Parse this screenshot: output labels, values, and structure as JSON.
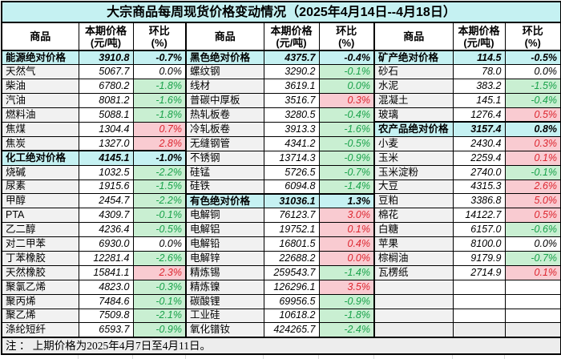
{
  "title": "大宗商品每周现货价格变动情况（2025年4月14日--4月18日）",
  "note": "注 ： 上期价格为2025年4月7日至4月11日。",
  "header": {
    "commodity": "商品",
    "price1": "本期价格",
    "price2": "(元/吨)",
    "pct1": "环比",
    "pct2": "(%)"
  },
  "colors": {
    "category_row_bg": "#c5f1f2",
    "title_bg": "#c5f1f2",
    "commodity_col_bg": "#f1f1f1",
    "increase_bg": "#f9cbd1",
    "increase_text": "#dd2630",
    "decrease_bg": "#c9efd2",
    "decrease_text": "#19a24a",
    "footer_bg": "#ededed"
  },
  "groups": [
    {
      "rows": [
        {
          "kind": "category",
          "name": "能源绝对价格",
          "price": "3910.8",
          "pct": "-0.7%"
        },
        {
          "kind": "item",
          "name": "天然气",
          "price": "5067.7",
          "pct": "0.0%",
          "trend": "flat"
        },
        {
          "kind": "item",
          "name": "柴油",
          "price": "6780.2",
          "pct": "-1.8%",
          "trend": "down"
        },
        {
          "kind": "item",
          "name": "汽油",
          "price": "8081.2",
          "pct": "-1.6%",
          "trend": "down"
        },
        {
          "kind": "item",
          "name": "燃料油",
          "price": "5088.1",
          "pct": "-1.8%",
          "trend": "down"
        },
        {
          "kind": "item",
          "name": "焦煤",
          "price": "1304.4",
          "pct": "0.7%",
          "trend": "up"
        },
        {
          "kind": "item",
          "name": "焦炭",
          "price": "1327.0",
          "pct": "2.8%",
          "trend": "up"
        },
        {
          "kind": "category",
          "name": "化工绝对价格",
          "price": "4145.1",
          "pct": "-1.0%"
        },
        {
          "kind": "item",
          "name": "烧碱",
          "price": "1032.5",
          "pct": "-2.2%",
          "trend": "down"
        },
        {
          "kind": "item",
          "name": "尿素",
          "price": "1915.6",
          "pct": "-1.5%",
          "trend": "down"
        },
        {
          "kind": "item",
          "name": "甲醇",
          "price": "2454.7",
          "pct": "-2.2%",
          "trend": "down"
        },
        {
          "kind": "item",
          "name": "PTA",
          "price": "4309.7",
          "pct": "-0.1%",
          "trend": "down"
        },
        {
          "kind": "item",
          "name": "乙二醇",
          "price": "4236.4",
          "pct": "-0.5%",
          "trend": "down"
        },
        {
          "kind": "item",
          "name": "对二甲苯",
          "price": "6930.0",
          "pct": "0.0%",
          "trend": "flat"
        },
        {
          "kind": "item",
          "name": "丁苯橡胶",
          "price": "12281.4",
          "pct": "-2.6%",
          "trend": "down"
        },
        {
          "kind": "item",
          "name": "天然橡胶",
          "price": "15841.1",
          "pct": "2.3%",
          "trend": "up"
        },
        {
          "kind": "item",
          "name": "聚氯乙烯",
          "price": "4823.0",
          "pct": "-0.3%",
          "trend": "down"
        },
        {
          "kind": "item",
          "name": "聚丙烯",
          "price": "7484.6",
          "pct": "-0.1%",
          "trend": "down"
        },
        {
          "kind": "item",
          "name": "聚乙烯",
          "price": "7509.8",
          "pct": "-2.1%",
          "trend": "down"
        },
        {
          "kind": "item",
          "name": "涤纶短纤",
          "price": "6593.7",
          "pct": "-0.9%",
          "trend": "down"
        }
      ]
    },
    {
      "rows": [
        {
          "kind": "category",
          "name": "黑色绝对价格",
          "price": "4375.7",
          "pct": "-0.4%"
        },
        {
          "kind": "item",
          "name": "螺纹钢",
          "price": "3290.2",
          "pct": "-0.1%",
          "trend": "down"
        },
        {
          "kind": "item",
          "name": "线材",
          "price": "3619.1",
          "pct": "0.0%",
          "trend": "down"
        },
        {
          "kind": "item",
          "name": "普碳中厚板",
          "price": "3516.7",
          "pct": "0.3%",
          "trend": "up"
        },
        {
          "kind": "item",
          "name": "热轧板卷",
          "price": "3280.5",
          "pct": "-0.4%",
          "trend": "down"
        },
        {
          "kind": "item",
          "name": "冷轧板卷",
          "price": "3913.3",
          "pct": "-1.6%",
          "trend": "down"
        },
        {
          "kind": "item",
          "name": "无缝钢管",
          "price": "4341.2",
          "pct": "-0.5%",
          "trend": "down"
        },
        {
          "kind": "item",
          "name": "不锈钢",
          "price": "13714.3",
          "pct": "-0.9%",
          "trend": "down"
        },
        {
          "kind": "item",
          "name": "硅锰",
          "price": "5726.5",
          "pct": "-0.7%",
          "trend": "down"
        },
        {
          "kind": "item",
          "name": "硅铁",
          "price": "6094.8",
          "pct": "-1.4%",
          "trend": "down"
        },
        {
          "kind": "category",
          "name": "有色绝对价格",
          "price": "31036.1",
          "pct": "1.3%"
        },
        {
          "kind": "item",
          "name": "电解铜",
          "price": "76123.7",
          "pct": "3.0%",
          "trend": "up"
        },
        {
          "kind": "item",
          "name": "电解铝",
          "price": "19752.1",
          "pct": "0.1%",
          "trend": "up"
        },
        {
          "kind": "item",
          "name": "电解铅",
          "price": "16801.5",
          "pct": "0.4%",
          "trend": "up"
        },
        {
          "kind": "item",
          "name": "电解锌",
          "price": "22688.2",
          "pct": "0.0%",
          "trend": "up"
        },
        {
          "kind": "item",
          "name": "精炼锡",
          "price": "259543.7",
          "pct": "-1.4%",
          "trend": "down"
        },
        {
          "kind": "item",
          "name": "精炼镍",
          "price": "126296.1",
          "pct": "3.5%",
          "trend": "up"
        },
        {
          "kind": "item",
          "name": "碳酸锂",
          "price": "69956.5",
          "pct": "-0.9%",
          "trend": "down"
        },
        {
          "kind": "item",
          "name": "工业硅",
          "price": "10618.2",
          "pct": "-1.8%",
          "trend": "down"
        },
        {
          "kind": "item",
          "name": "氧化镨钕",
          "price": "424265.7",
          "pct": "-2.4%",
          "trend": "down"
        }
      ]
    },
    {
      "rows": [
        {
          "kind": "category",
          "name": "矿产绝对价格",
          "price": "114.5",
          "pct": "-0.5%"
        },
        {
          "kind": "item",
          "name": "砂石",
          "price": "78.0",
          "pct": "0.0%",
          "trend": "flat"
        },
        {
          "kind": "item",
          "name": "水泥",
          "price": "383.2",
          "pct": "-1.5%",
          "trend": "down"
        },
        {
          "kind": "item",
          "name": "混凝土",
          "price": "145.1",
          "pct": "-0.4%",
          "trend": "down"
        },
        {
          "kind": "item",
          "name": "玻璃",
          "price": "1276.4",
          "pct": "0.5%",
          "trend": "up"
        },
        {
          "kind": "category",
          "name": "农产品绝对价格",
          "price": "3157.4",
          "pct": "0.8%"
        },
        {
          "kind": "item",
          "name": "小麦",
          "price": "2430.4",
          "pct": "0.3%",
          "trend": "up"
        },
        {
          "kind": "item",
          "name": "玉米",
          "price": "2259.4",
          "pct": "0.1%",
          "trend": "up"
        },
        {
          "kind": "item",
          "name": "玉米淀粉",
          "price": "2740.0",
          "pct": "-0.1%",
          "trend": "down"
        },
        {
          "kind": "item",
          "name": "大豆",
          "price": "4315.3",
          "pct": "2.6%",
          "trend": "up"
        },
        {
          "kind": "item",
          "name": "豆粕",
          "price": "3386.8",
          "pct": "5.0%",
          "trend": "up"
        },
        {
          "kind": "item",
          "name": "棉花",
          "price": "14122.7",
          "pct": "0.5%",
          "trend": "up"
        },
        {
          "kind": "item",
          "name": "白糖",
          "price": "6157.0",
          "pct": "-0.6%",
          "trend": "down"
        },
        {
          "kind": "item",
          "name": "苹果",
          "price": "8100.0",
          "pct": "0.0%",
          "trend": "flat"
        },
        {
          "kind": "item",
          "name": "棕榈油",
          "price": "9179.9",
          "pct": "-0.7%",
          "trend": "down"
        },
        {
          "kind": "item",
          "name": "瓦楞纸",
          "price": "2714.9",
          "pct": "0.1%",
          "trend": "up"
        },
        {
          "kind": "empty",
          "name": "",
          "price": "",
          "pct": ""
        },
        {
          "kind": "empty",
          "name": "",
          "price": "",
          "pct": ""
        },
        {
          "kind": "empty",
          "name": "",
          "price": "",
          "pct": ""
        },
        {
          "kind": "empty",
          "name": "",
          "price": "",
          "pct": "",
          "gray": true
        }
      ]
    }
  ]
}
